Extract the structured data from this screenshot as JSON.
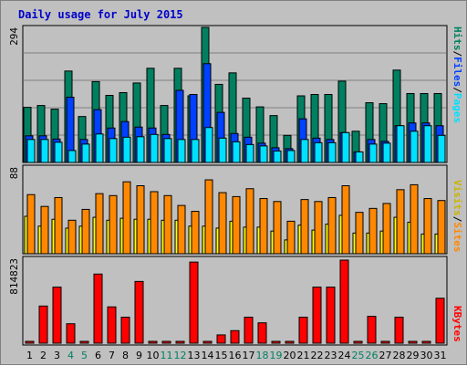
{
  "title": "Daily usage for July 2015",
  "colors": {
    "hits": "#008060",
    "files": "#0040ff",
    "pages": "#00e0ff",
    "visits": "#ffff00",
    "sites": "#ff8800",
    "kbytes": "#ff0000",
    "weekend": "#008060",
    "weekday": "#000000"
  },
  "side_labels": {
    "pages": "Pages",
    "files": "Files",
    "hits": "Hits",
    "slash": "/",
    "sites": "Sites",
    "visits": "Visits",
    "kbytes": "KBytes"
  },
  "chart_data": [
    {
      "type": "bar",
      "panel": "hits-files-pages",
      "ymax_label": "294",
      "ylim": [
        0,
        294
      ],
      "categories": [
        "1",
        "2",
        "3",
        "4",
        "5",
        "6",
        "7",
        "8",
        "9",
        "10",
        "11",
        "12",
        "13",
        "14",
        "15",
        "16",
        "17",
        "18",
        "19",
        "20",
        "21",
        "22",
        "23",
        "24",
        "25",
        "26",
        "27",
        "28",
        "29",
        "30",
        "31"
      ],
      "weekend_days": [
        "4",
        "5",
        "11",
        "12",
        "18",
        "19",
        "25",
        "26"
      ],
      "series": [
        {
          "name": "Hits",
          "values": [
            120,
            124,
            116,
            199,
            100,
            176,
            146,
            152,
            173,
            205,
            124,
            205,
            145,
            294,
            170,
            195,
            140,
            121,
            102,
            59,
            145,
            148,
            148,
            177,
            68,
            130,
            128,
            201,
            150,
            150,
            150
          ]
        },
        {
          "name": "Files",
          "values": [
            58,
            58,
            51,
            142,
            50,
            115,
            75,
            89,
            77,
            75,
            61,
            157,
            148,
            215,
            109,
            63,
            55,
            42,
            32,
            30,
            95,
            53,
            50,
            65,
            23,
            50,
            46,
            80,
            86,
            86,
            80
          ]
        },
        {
          "name": "Pages",
          "values": [
            50,
            50,
            44,
            26,
            40,
            62,
            52,
            55,
            56,
            61,
            52,
            50,
            50,
            76,
            53,
            45,
            39,
            36,
            25,
            26,
            50,
            43,
            43,
            65,
            23,
            40,
            42,
            80,
            68,
            80,
            59
          ]
        }
      ]
    },
    {
      "type": "bar",
      "panel": "visits-sites",
      "ymax_label": "88",
      "ylim": [
        0,
        88
      ],
      "categories": [
        "1",
        "2",
        "3",
        "4",
        "5",
        "6",
        "7",
        "8",
        "9",
        "10",
        "11",
        "12",
        "13",
        "14",
        "15",
        "16",
        "17",
        "18",
        "19",
        "20",
        "21",
        "22",
        "23",
        "24",
        "25",
        "26",
        "27",
        "28",
        "29",
        "30",
        "31"
      ],
      "series": [
        {
          "name": "Sites",
          "values": [
            60,
            48,
            57,
            34,
            45,
            61,
            59,
            73,
            69,
            63,
            59,
            49,
            43,
            75,
            62,
            58,
            66,
            56,
            53,
            33,
            55,
            53,
            57,
            69,
            42,
            46,
            51,
            65,
            70,
            56,
            54
          ]
        },
        {
          "name": "Visits",
          "values": [
            38,
            28,
            35,
            26,
            28,
            37,
            34,
            36,
            35,
            35,
            34,
            34,
            28,
            28,
            26,
            33,
            27,
            27,
            23,
            14,
            29,
            24,
            30,
            39,
            21,
            21,
            23,
            37,
            32,
            20,
            20
          ]
        }
      ]
    },
    {
      "type": "bar",
      "panel": "kbytes",
      "ymax_label": "814823",
      "ylim": [
        0,
        814823
      ],
      "categories": [
        "1",
        "2",
        "3",
        "4",
        "5",
        "6",
        "7",
        "8",
        "9",
        "10",
        "11",
        "12",
        "13",
        "14",
        "15",
        "16",
        "17",
        "18",
        "19",
        "20",
        "21",
        "22",
        "23",
        "24",
        "25",
        "26",
        "27",
        "28",
        "29",
        "30",
        "31"
      ],
      "series": [
        {
          "name": "KBytes",
          "values": [
            0,
            374000,
            556000,
            204000,
            0,
            681000,
            366000,
            267000,
            610000,
            0,
            0,
            0,
            796000,
            0,
            97000,
            138000,
            267000,
            213000,
            23000,
            0,
            267000,
            556000,
            556000,
            814823,
            0,
            275000,
            0,
            267000,
            0,
            0,
            449000
          ]
        }
      ]
    }
  ]
}
